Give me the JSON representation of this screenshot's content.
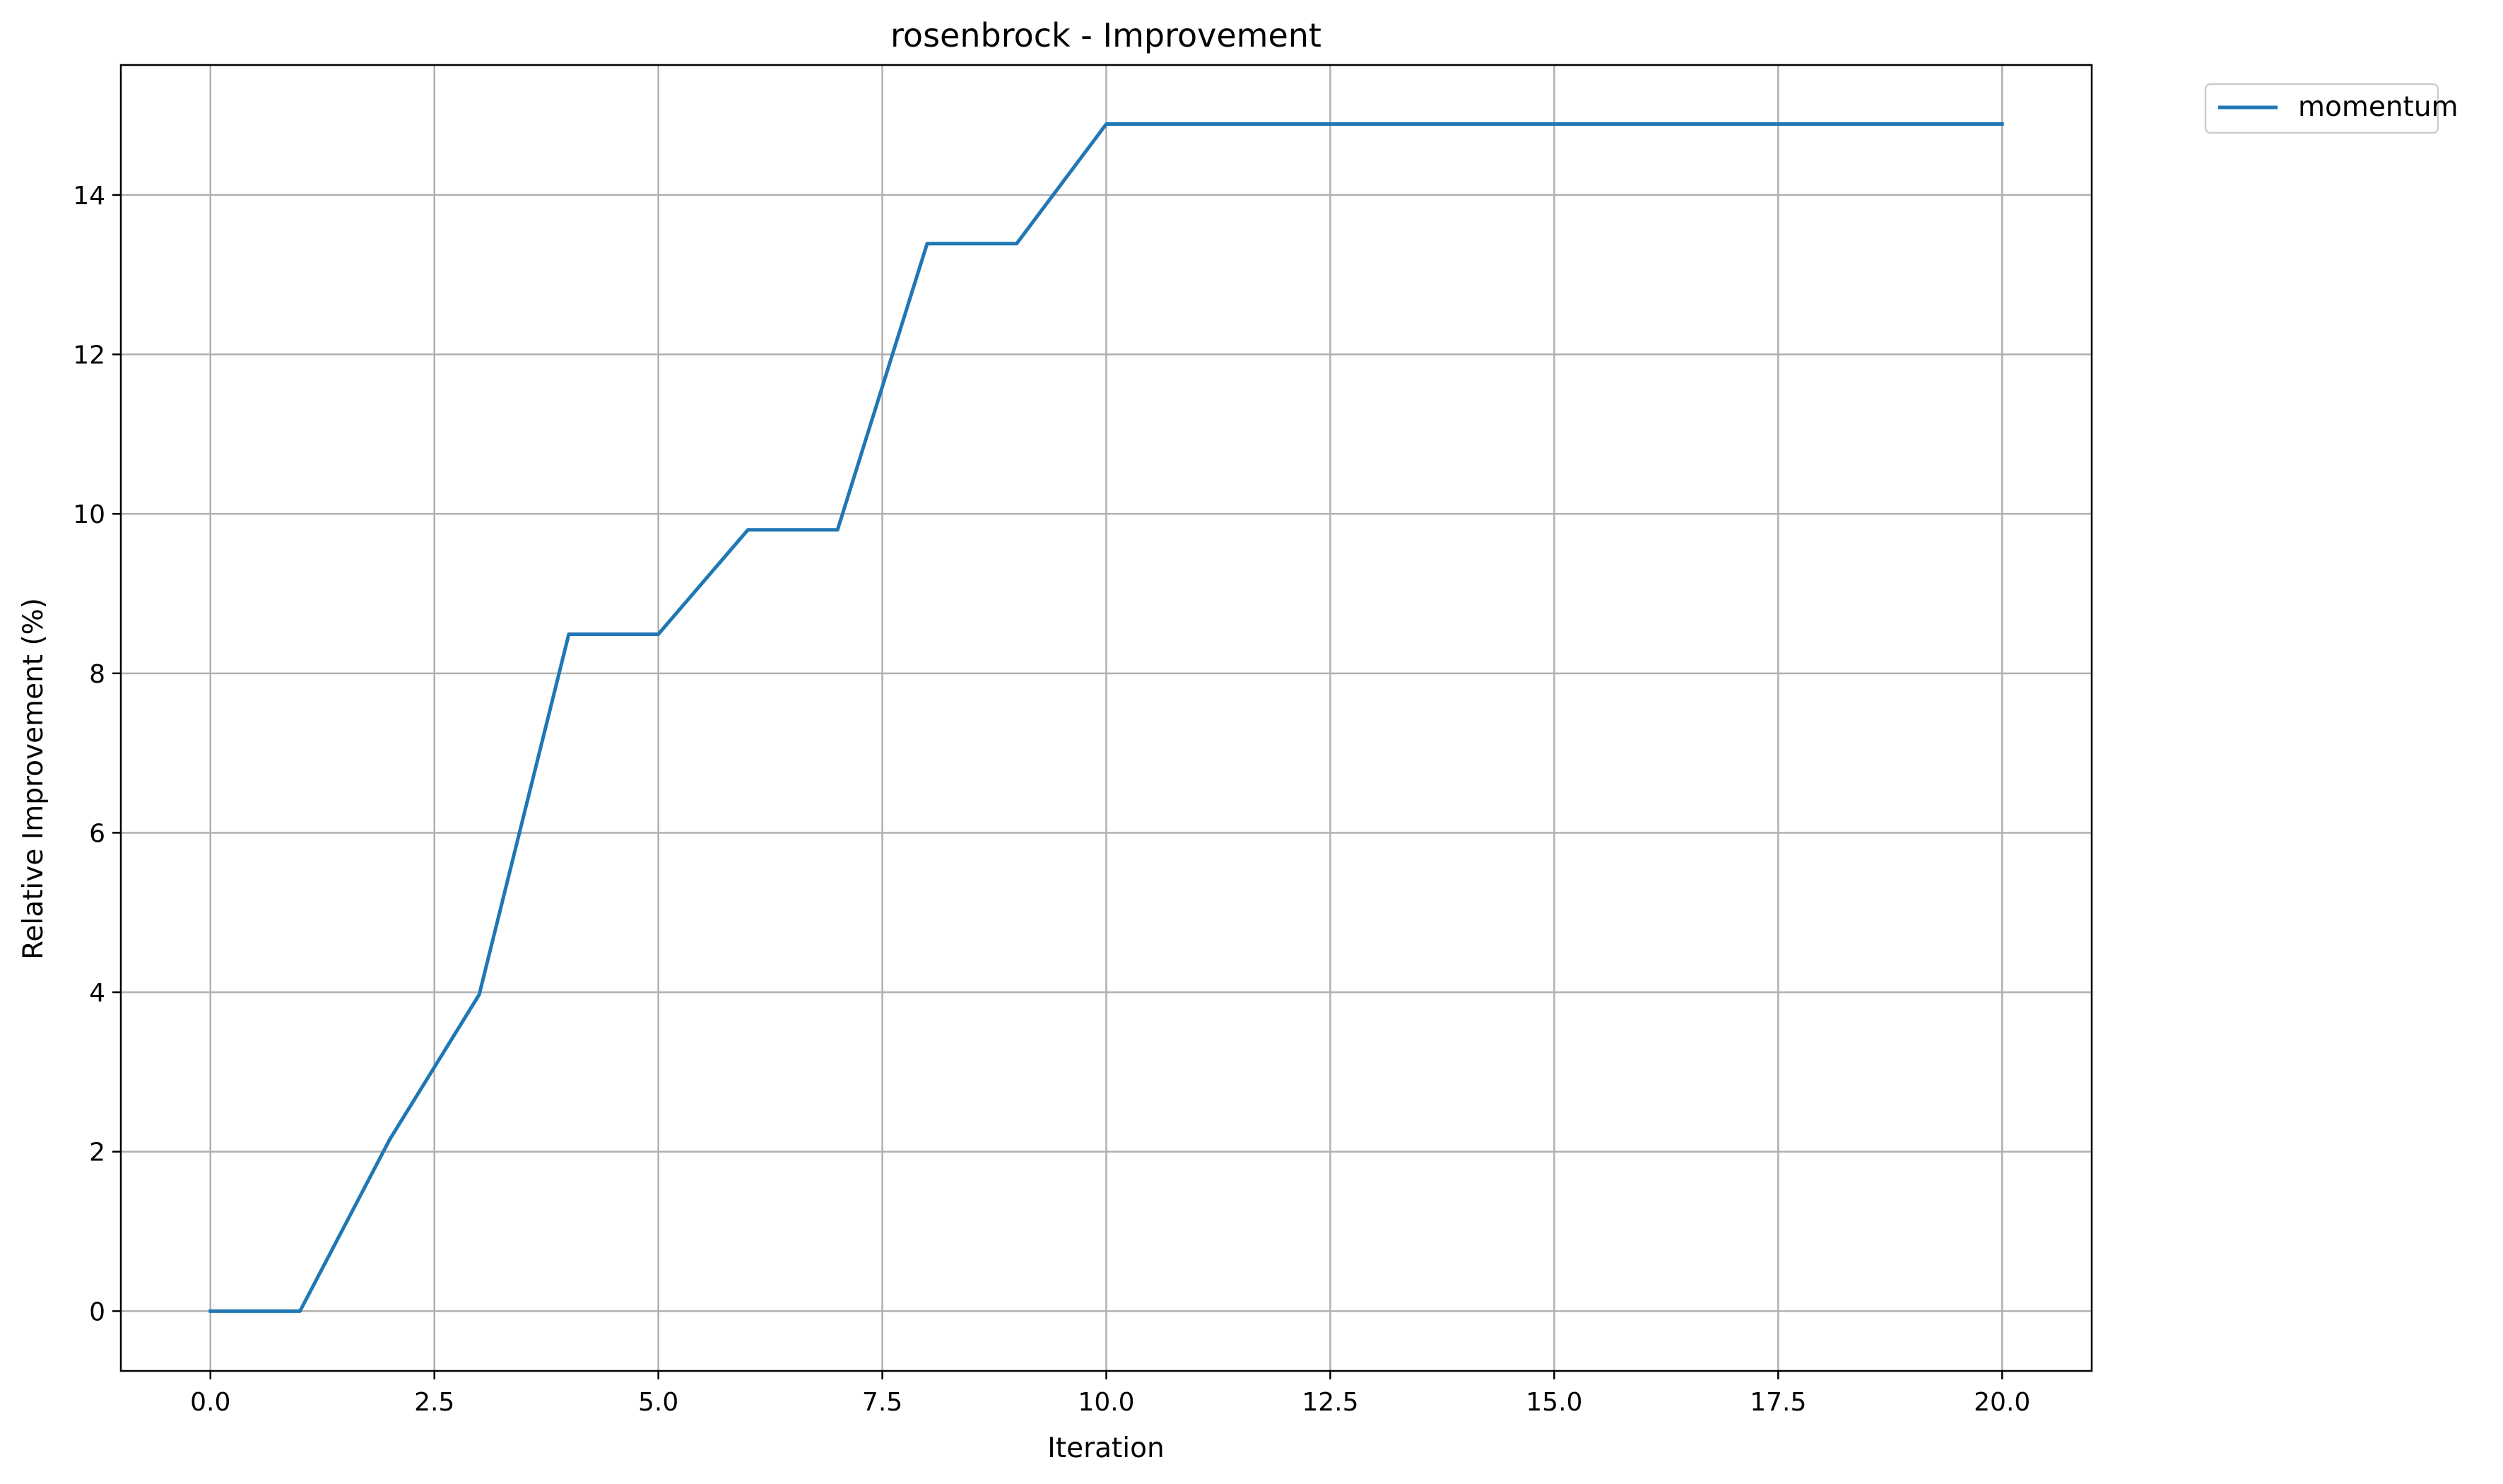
{
  "chart_data": {
    "type": "line",
    "title": "rosenbrock - Improvement",
    "xlabel": "Iteration",
    "ylabel": "Relative Improvement (%)",
    "xlim": [
      -1.0,
      21.0
    ],
    "ylim": [
      -0.75,
      15.63
    ],
    "xticks": [
      0.0,
      2.5,
      5.0,
      7.5,
      10.0,
      12.5,
      15.0,
      17.5,
      20.0
    ],
    "xtick_labels": [
      "0.0",
      "2.5",
      "5.0",
      "7.5",
      "10.0",
      "12.5",
      "15.0",
      "17.5",
      "20.0"
    ],
    "yticks": [
      0,
      2,
      4,
      6,
      8,
      10,
      12,
      14
    ],
    "ytick_labels": [
      "0",
      "2",
      "4",
      "6",
      "8",
      "10",
      "12",
      "14"
    ],
    "grid": true,
    "legend_position": "outside-top-right",
    "series": [
      {
        "name": "momentum",
        "color": "#1f77b4",
        "x": [
          0,
          1,
          2,
          3,
          4,
          5,
          6,
          7,
          8,
          9,
          10,
          11,
          12,
          13,
          14,
          15,
          16,
          17,
          18,
          19,
          20
        ],
        "y": [
          0.0,
          0.0,
          2.15,
          3.97,
          8.49,
          8.49,
          9.8,
          9.8,
          13.39,
          13.39,
          14.89,
          14.89,
          14.89,
          14.89,
          14.89,
          14.89,
          14.89,
          14.89,
          14.89,
          14.89,
          14.89
        ]
      }
    ]
  }
}
